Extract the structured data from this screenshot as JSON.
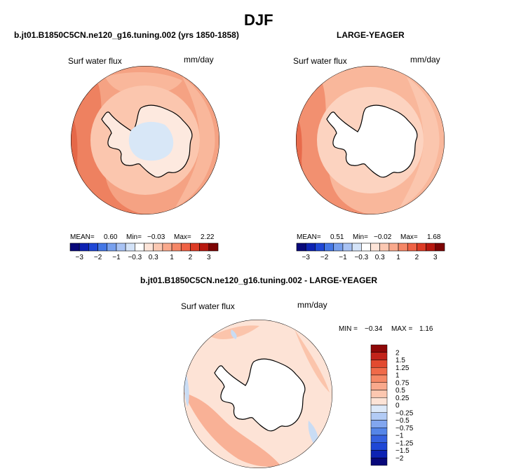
{
  "page": {
    "title": "DJF",
    "diff_title": "b.jt01.B1850C5CN.ne120_g16.tuning.002 - LARGE-YEAGER"
  },
  "colors": {
    "ocean_light": "#fce6dc",
    "ocean_mid": "#f8b79c",
    "ocean_strong": "#f08e6e",
    "ocean_deep": "#e15a3d",
    "land": "#ffffff",
    "ice_blue": "#d8e7f7",
    "coast": "#000000"
  },
  "panels": [
    {
      "title": "b.jt01.B1850C5CN.ne120_g16.tuning.002 (yrs 1850-1858)",
      "variable": "Surf water flux",
      "units": "mm/day",
      "stats": {
        "mean_label": "MEAN=",
        "mean": "0.60",
        "min_label": "Min=",
        "min": "−0.03",
        "max_label": "Max=",
        "max": "2.22"
      }
    },
    {
      "title": "LARGE-YEAGER",
      "variable": "Surf water flux",
      "units": "mm/day",
      "stats": {
        "mean_label": "MEAN=",
        "mean": "0.51",
        "min_label": "Min=",
        "min": "−0.02",
        "max_label": "Max=",
        "max": "1.68"
      }
    },
    {
      "title": "",
      "variable": "Surf water flux",
      "units": "mm/day",
      "stats": {
        "min_label": "MIN =",
        "min": "−0.34",
        "max_label": "MAX =",
        "max": "1.16"
      }
    }
  ],
  "horizontal_colorbar": {
    "colors": [
      "#08087a",
      "#0d22b3",
      "#1f47d6",
      "#4477e6",
      "#78a0ee",
      "#a9c3f4",
      "#d4e3f8",
      "#ffffff",
      "#fde4d8",
      "#fbc8b2",
      "#f9a98c",
      "#f58767",
      "#ef6245",
      "#dd3b25",
      "#b8180f",
      "#7d0404"
    ],
    "tick_labels": [
      "−3",
      "−2",
      "−1",
      "−0.3",
      "0.3",
      "1",
      "2",
      "3"
    ]
  },
  "vertical_colorbar": {
    "colors": [
      "#08087a",
      "#0d22b3",
      "#1f47d6",
      "#3561e0",
      "#5585e8",
      "#82a6ef",
      "#b2cbf5",
      "#dde9f9",
      "#fde3d6",
      "#fcc7b0",
      "#f9a98c",
      "#f58866",
      "#f06a49",
      "#e24a30",
      "#c2231a",
      "#8e0808"
    ],
    "tick_labels": [
      "2",
      "1.5",
      "1.25",
      "1",
      "0.75",
      "0.5",
      "0.25",
      "0",
      "−0.25",
      "−0.5",
      "−0.75",
      "−1",
      "−1.25",
      "−1.5",
      "−2"
    ]
  }
}
